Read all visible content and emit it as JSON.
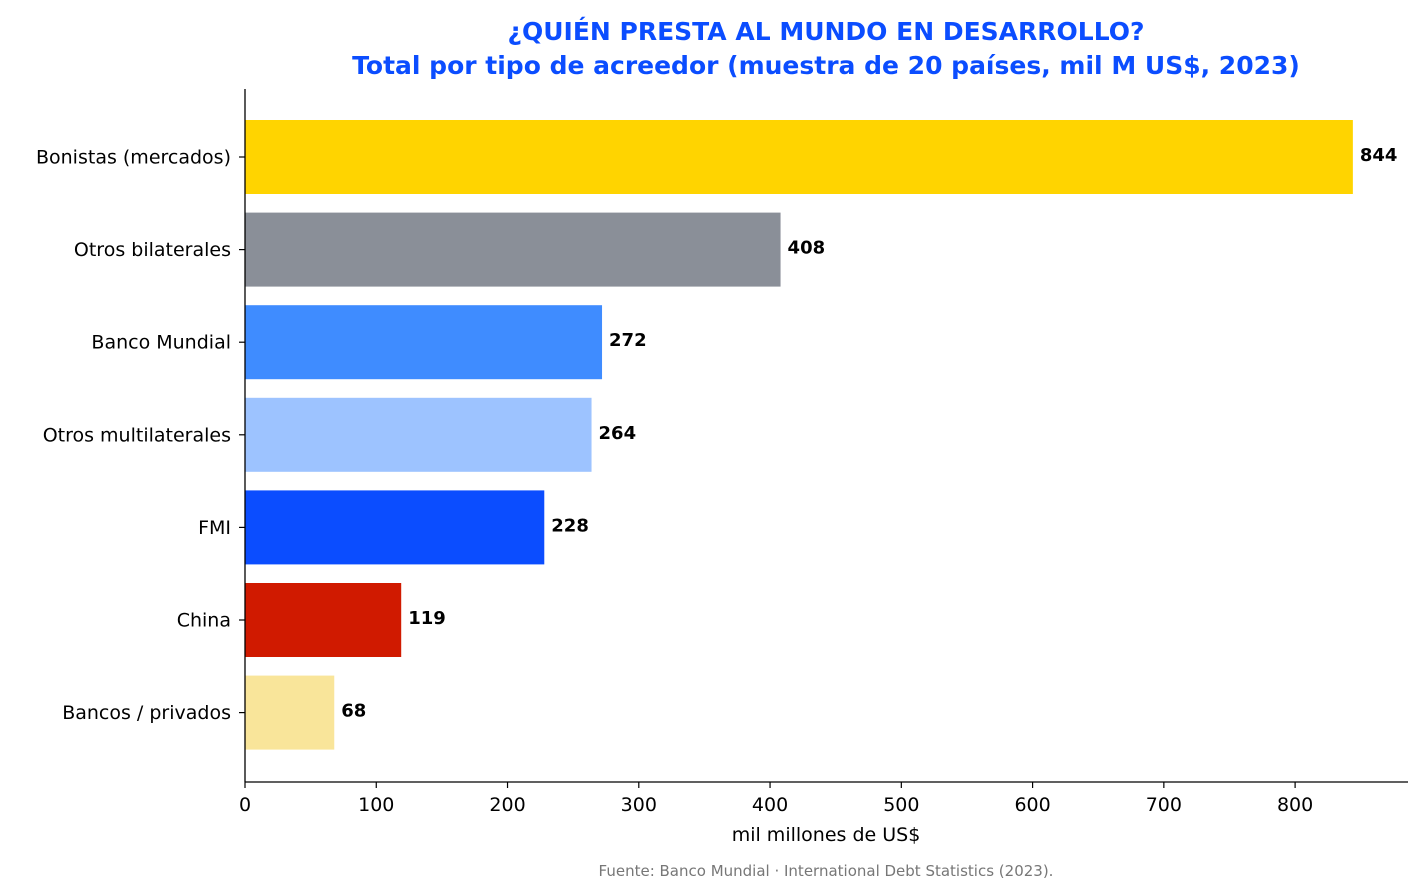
{
  "chart_data": {
    "type": "bar",
    "orientation": "horizontal",
    "title_line1": "¿QUIÉN PRESTA AL MUNDO EN DESARROLLO?",
    "title_line2": "Total por tipo de acreedor (muestra de 20 países, mil M US$, 2023)",
    "xlabel": "mil millones de US$",
    "ylabel": "",
    "categories": [
      "Bonistas (mercados)",
      "Otros bilaterales",
      "Banco Mundial",
      "Otros multilaterales",
      "FMI",
      "China",
      "Bancos / privados"
    ],
    "values": [
      844,
      408,
      272,
      264,
      228,
      119,
      68
    ],
    "value_labels": [
      "844",
      "408",
      "272",
      "264",
      "228",
      "119",
      "68"
    ],
    "colors": [
      "#ffd400",
      "#8a8f98",
      "#3f8cff",
      "#9dc3ff",
      "#0b4dff",
      "#d01a00",
      "#f9e59a"
    ],
    "xlim": [
      0,
      886
    ],
    "xticks": [
      0,
      100,
      200,
      300,
      400,
      500,
      600,
      700,
      800
    ],
    "xtick_labels": [
      "0",
      "100",
      "200",
      "300",
      "400",
      "500",
      "600",
      "700",
      "800"
    ],
    "grid": false,
    "title_color": "#0b4dff"
  },
  "source": "Fuente: Banco Mundial · International Debt Statistics (2023)."
}
